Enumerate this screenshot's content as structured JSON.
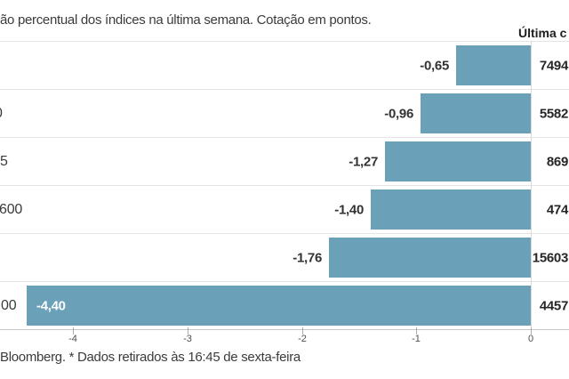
{
  "subtitle": "ão percentual dos índices na última semana. Cotação em pontos.",
  "right_column_header": "Última c",
  "source_note": "Bloomberg.  * Dados retirados às 16:45 de sexta-feira",
  "colors": {
    "bar": "#6BA0B9",
    "row_separator": "#e4e4e4",
    "axis_line": "#c7c7c7",
    "text": "#3b3b3b"
  },
  "chart_data": {
    "type": "bar",
    "orientation": "horizontal",
    "title": "ão percentual dos índices na última semana. Cotação em pontos.",
    "categories_visible": [
      "",
      "0",
      "5",
      "600",
      "",
      "00"
    ],
    "values": [
      -0.65,
      -0.96,
      -1.27,
      -1.4,
      -1.76,
      -4.4
    ],
    "value_labels": [
      "-0,65",
      "-0,96",
      "-1,27",
      "-1,40",
      "-1,76",
      "-4,40"
    ],
    "last_quote_visible": [
      "7494",
      "5582",
      "869",
      "474",
      "15603",
      "4457"
    ],
    "x_ticks": [
      "-4",
      "-3",
      "-2",
      "-1",
      "0"
    ],
    "xlim": [
      -4.64,
      0
    ],
    "grid": "row-separators",
    "legend": "none"
  }
}
